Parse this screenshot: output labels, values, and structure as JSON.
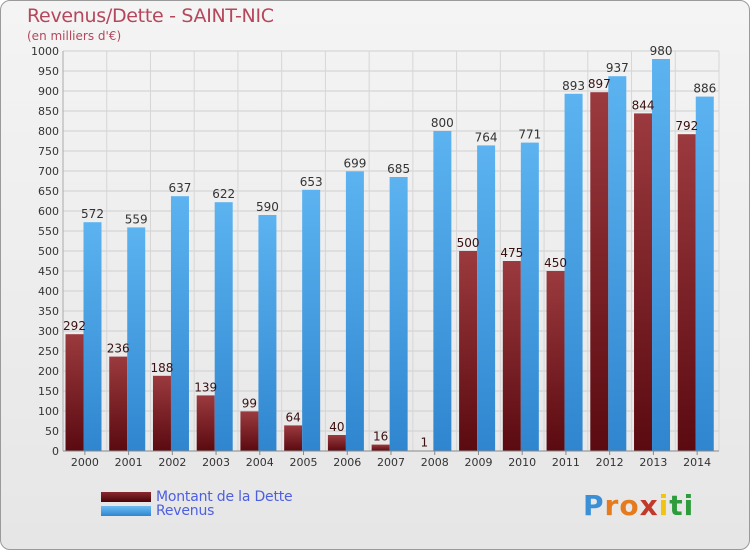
{
  "title": "Revenus/Dette - SAINT-NIC",
  "subtitle": "(en milliers d'€)",
  "chart_data": {
    "type": "bar",
    "title": "Revenus/Dette - SAINT-NIC",
    "ylabel": "(en milliers d'€)",
    "ylim": [
      0,
      1000
    ],
    "ytick_step": 50,
    "grid": true,
    "legend_position": "bottom-left",
    "categories": [
      "2000",
      "2001",
      "2002",
      "2003",
      "2004",
      "2005",
      "2006",
      "2007",
      "2008",
      "2009",
      "2010",
      "2011",
      "2012",
      "2013",
      "2014"
    ],
    "series": [
      {
        "name": "Montant de la Dette",
        "color": "#7a1e24",
        "values": [
          292,
          236,
          188,
          139,
          99,
          64,
          40,
          16,
          1,
          500,
          475,
          450,
          897,
          844,
          792
        ]
      },
      {
        "name": "Revenus",
        "color": "#4aa3e6",
        "values": [
          572,
          559,
          637,
          622,
          590,
          653,
          699,
          685,
          800,
          764,
          771,
          893,
          937,
          980,
          886
        ]
      }
    ]
  },
  "legend": [
    {
      "label": "Montant de la Dette",
      "color": "#7a1e24"
    },
    {
      "label": "Revenus",
      "color": "#4aa3e6"
    }
  ],
  "logo": {
    "text": "Proxiti"
  }
}
